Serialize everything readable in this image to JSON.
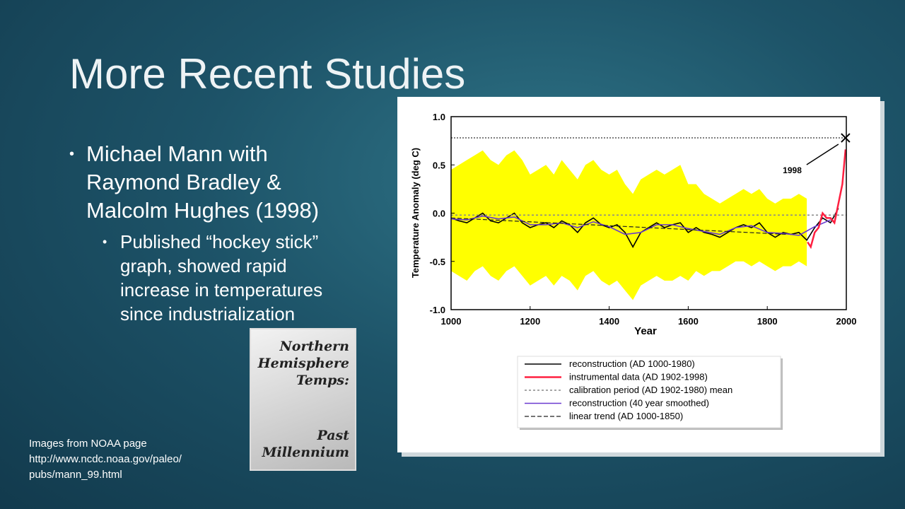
{
  "slide": {
    "title": "More Recent Studies",
    "bullets": [
      "Michael Mann with Raymond Bradley & Malcolm Hughes (1998)"
    ],
    "sub_bullets": [
      "Published “hockey stick” graph, showed rapid increase in temperatures since industrialization"
    ],
    "caption": [
      "Images from NOAA page",
      "http://www.ncdc.noaa.gov/paleo/",
      "pubs/mann_99.html"
    ],
    "thumbnail": {
      "top": [
        "Northern",
        "Hemisphere",
        "Temps:"
      ],
      "bottom": [
        "Past",
        "Millennium"
      ]
    }
  },
  "chart": {
    "type": "line",
    "xlabel": "Year",
    "ylabel": "Temperature Anomaly (deg C)",
    "xlim": [
      1000,
      2000
    ],
    "ylim": [
      -1,
      1
    ],
    "xticks": [
      1000,
      1200,
      1400,
      1600,
      1800,
      2000
    ],
    "yticks": [
      {
        "value": 1,
        "label": "1.0"
      },
      {
        "value": 0.5,
        "label": "0.5"
      },
      {
        "value": 0,
        "label": "0.0"
      },
      {
        "value": -0.5,
        "label": "-0.5"
      },
      {
        "value": -1,
        "label": "-1.0"
      }
    ],
    "band": {
      "color": "#ffff00",
      "x": [
        1000,
        1020,
        1040,
        1060,
        1080,
        1100,
        1120,
        1140,
        1160,
        1180,
        1200,
        1220,
        1240,
        1260,
        1280,
        1300,
        1320,
        1340,
        1360,
        1380,
        1400,
        1420,
        1440,
        1460,
        1480,
        1500,
        1520,
        1540,
        1560,
        1580,
        1600,
        1620,
        1640,
        1660,
        1680,
        1700,
        1720,
        1740,
        1760,
        1780,
        1800,
        1820,
        1840,
        1860,
        1880,
        1900
      ],
      "upper": [
        0.45,
        0.5,
        0.55,
        0.6,
        0.65,
        0.55,
        0.5,
        0.6,
        0.65,
        0.55,
        0.4,
        0.45,
        0.5,
        0.4,
        0.55,
        0.45,
        0.35,
        0.5,
        0.55,
        0.45,
        0.4,
        0.45,
        0.3,
        0.2,
        0.35,
        0.4,
        0.45,
        0.4,
        0.45,
        0.5,
        0.3,
        0.3,
        0.2,
        0.15,
        0.1,
        0.15,
        0.2,
        0.25,
        0.2,
        0.25,
        0.15,
        0.1,
        0.15,
        0.15,
        0.2,
        0.15
      ],
      "lower": [
        -0.6,
        -0.65,
        -0.7,
        -0.6,
        -0.55,
        -0.65,
        -0.7,
        -0.6,
        -0.55,
        -0.65,
        -0.75,
        -0.7,
        -0.65,
        -0.75,
        -0.65,
        -0.7,
        -0.8,
        -0.65,
        -0.6,
        -0.7,
        -0.75,
        -0.7,
        -0.8,
        -0.9,
        -0.75,
        -0.7,
        -0.65,
        -0.7,
        -0.7,
        -0.65,
        -0.7,
        -0.6,
        -0.65,
        -0.6,
        -0.6,
        -0.55,
        -0.5,
        -0.5,
        -0.55,
        -0.5,
        -0.55,
        -0.6,
        -0.55,
        -0.55,
        -0.5,
        -0.55
      ]
    },
    "series": [
      {
        "name": "reconstruction (AD 1000-1980)",
        "color": "#000000",
        "style": "solid",
        "width": 1.6,
        "x": [
          1000,
          1020,
          1040,
          1060,
          1080,
          1100,
          1120,
          1140,
          1160,
          1180,
          1200,
          1220,
          1240,
          1260,
          1280,
          1300,
          1320,
          1340,
          1360,
          1380,
          1400,
          1420,
          1440,
          1460,
          1480,
          1500,
          1520,
          1540,
          1560,
          1580,
          1600,
          1620,
          1640,
          1660,
          1680,
          1700,
          1720,
          1740,
          1760,
          1780,
          1800,
          1820,
          1840,
          1860,
          1880,
          1900,
          1920,
          1940,
          1960,
          1980
        ],
        "values": [
          -0.05,
          -0.08,
          -0.1,
          -0.05,
          0.0,
          -0.08,
          -0.1,
          -0.05,
          0.0,
          -0.1,
          -0.15,
          -0.12,
          -0.1,
          -0.15,
          -0.08,
          -0.12,
          -0.2,
          -0.1,
          -0.05,
          -0.12,
          -0.15,
          -0.12,
          -0.2,
          -0.35,
          -0.2,
          -0.15,
          -0.1,
          -0.15,
          -0.12,
          -0.1,
          -0.2,
          -0.15,
          -0.2,
          -0.22,
          -0.25,
          -0.2,
          -0.15,
          -0.12,
          -0.15,
          -0.1,
          -0.2,
          -0.25,
          -0.2,
          -0.22,
          -0.2,
          -0.28,
          -0.15,
          -0.05,
          -0.1,
          0.05
        ]
      },
      {
        "name": "instrumental data (AD 1902-1998)",
        "color": "#ff2040",
        "style": "solid",
        "width": 2.5,
        "x": [
          1902,
          1910,
          1920,
          1930,
          1940,
          1950,
          1960,
          1970,
          1980,
          1990,
          1998
        ],
        "values": [
          -0.3,
          -0.35,
          -0.2,
          -0.15,
          0.0,
          -0.05,
          -0.05,
          -0.1,
          0.1,
          0.3,
          0.66
        ]
      },
      {
        "name": "calibration period (AD 1902-1980) mean",
        "color": "#888888",
        "style": "dotted",
        "width": 1.5,
        "x": [
          1000,
          2000
        ],
        "values": [
          -0.02,
          -0.02
        ]
      },
      {
        "name": "reconstruction (40 year smoothed)",
        "color": "#6a3ad0",
        "style": "solid",
        "width": 1.6,
        "x": [
          1000,
          1040,
          1080,
          1120,
          1160,
          1200,
          1240,
          1280,
          1320,
          1360,
          1400,
          1440,
          1480,
          1520,
          1560,
          1600,
          1640,
          1680,
          1720,
          1760,
          1800,
          1840,
          1880,
          1920,
          1960
        ],
        "values": [
          -0.06,
          -0.07,
          -0.03,
          -0.06,
          -0.04,
          -0.12,
          -0.12,
          -0.1,
          -0.15,
          -0.09,
          -0.14,
          -0.22,
          -0.2,
          -0.12,
          -0.12,
          -0.16,
          -0.19,
          -0.22,
          -0.15,
          -0.13,
          -0.2,
          -0.21,
          -0.23,
          -0.14,
          -0.07
        ]
      },
      {
        "name": "linear trend (AD 1000-1850)",
        "color": "#222222",
        "style": "dashed",
        "width": 1.2,
        "x": [
          1000,
          1850
        ],
        "values": [
          -0.05,
          -0.22
        ]
      }
    ],
    "annotation": {
      "text": "1998",
      "x": 1998,
      "y": 0.78
    }
  }
}
